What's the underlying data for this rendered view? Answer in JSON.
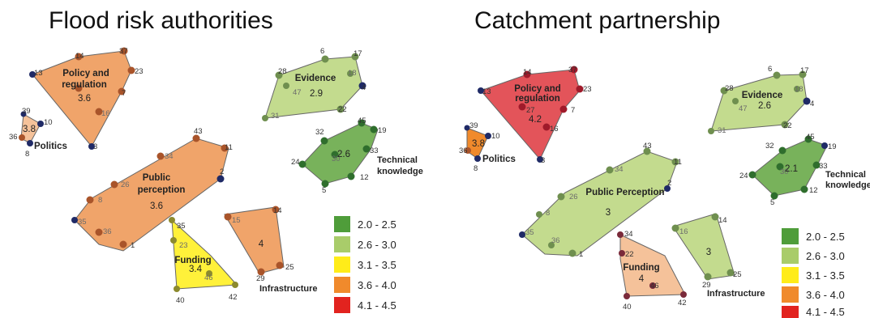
{
  "panels": {
    "left": {
      "title": "Flood risk authorities",
      "regions": [
        {
          "id": "policy",
          "label": [
            "Policy and",
            "regulation"
          ],
          "score": "3.6",
          "level": "3.6 - 4.0"
        },
        {
          "id": "politics",
          "label": [
            "Politics"
          ],
          "score": "3.8",
          "level": "3.6 - 4.0"
        },
        {
          "id": "evidence",
          "label": [
            "Evidence"
          ],
          "score": "2.9",
          "level": "2.6 - 3.0"
        },
        {
          "id": "technical",
          "label": [
            "Technical",
            "knowledge"
          ],
          "score": "2.6",
          "level": "2.6 - 3.0"
        },
        {
          "id": "public",
          "label": [
            "Public",
            "perception"
          ],
          "score": "3.6",
          "level": "3.6 - 4.0"
        },
        {
          "id": "funding",
          "label": [
            "Funding"
          ],
          "score": "3.4",
          "level": "3.1 - 3.5"
        },
        {
          "id": "infrastructure",
          "label": [
            "Infrastructure"
          ],
          "score": "4",
          "level": "3.6 - 4.0"
        }
      ]
    },
    "right": {
      "title": "Catchment partnership",
      "regions": [
        {
          "id": "policy",
          "label": [
            "Policy and",
            "regulation"
          ],
          "score": "4.2",
          "level": "4.1 - 4.5"
        },
        {
          "id": "politics",
          "label": [
            "Politics"
          ],
          "score": "3.8",
          "level": "3.6 - 4.0"
        },
        {
          "id": "evidence",
          "label": [
            "Evidence"
          ],
          "score": "2.6",
          "level": "2.6 - 3.0"
        },
        {
          "id": "technical",
          "label": [
            "Technical",
            "knowledge"
          ],
          "score": "2.1",
          "level": "2.0 - 2.5"
        },
        {
          "id": "public",
          "label": [
            "Public Perception"
          ],
          "score": "3",
          "level": "2.6 - 3.0"
        },
        {
          "id": "funding",
          "label": [
            "Funding"
          ],
          "score": "4",
          "level": "3.6 - 4.0"
        },
        {
          "id": "infrastructure",
          "label": [
            "Infrastructure"
          ],
          "score": "3",
          "level": "2.6 - 3.0"
        }
      ]
    }
  },
  "legend": [
    {
      "label": "2.0 - 2.5",
      "color": "#4f9d3a"
    },
    {
      "label": "2.6 - 3.0",
      "color": "#a9cc6a"
    },
    {
      "label": "3.1 - 3.5",
      "color": "#ffec19"
    },
    {
      "label": "3.6 - 4.0",
      "color": "#f08a2c"
    },
    {
      "label": "4.1 - 4.5",
      "color": "#e2231f"
    }
  ],
  "node_numbers": [
    "1",
    "2",
    "3",
    "5",
    "6",
    "7",
    "8",
    "9",
    "10",
    "12",
    "13",
    "14",
    "15",
    "16",
    "17",
    "18",
    "19",
    "20",
    "21",
    "22",
    "23",
    "24",
    "25",
    "26",
    "27",
    "28",
    "29",
    "30",
    "31",
    "32",
    "33",
    "34",
    "35",
    "36",
    "37",
    "38",
    "39",
    "40",
    "42",
    "43",
    "45",
    "46",
    "47"
  ]
}
